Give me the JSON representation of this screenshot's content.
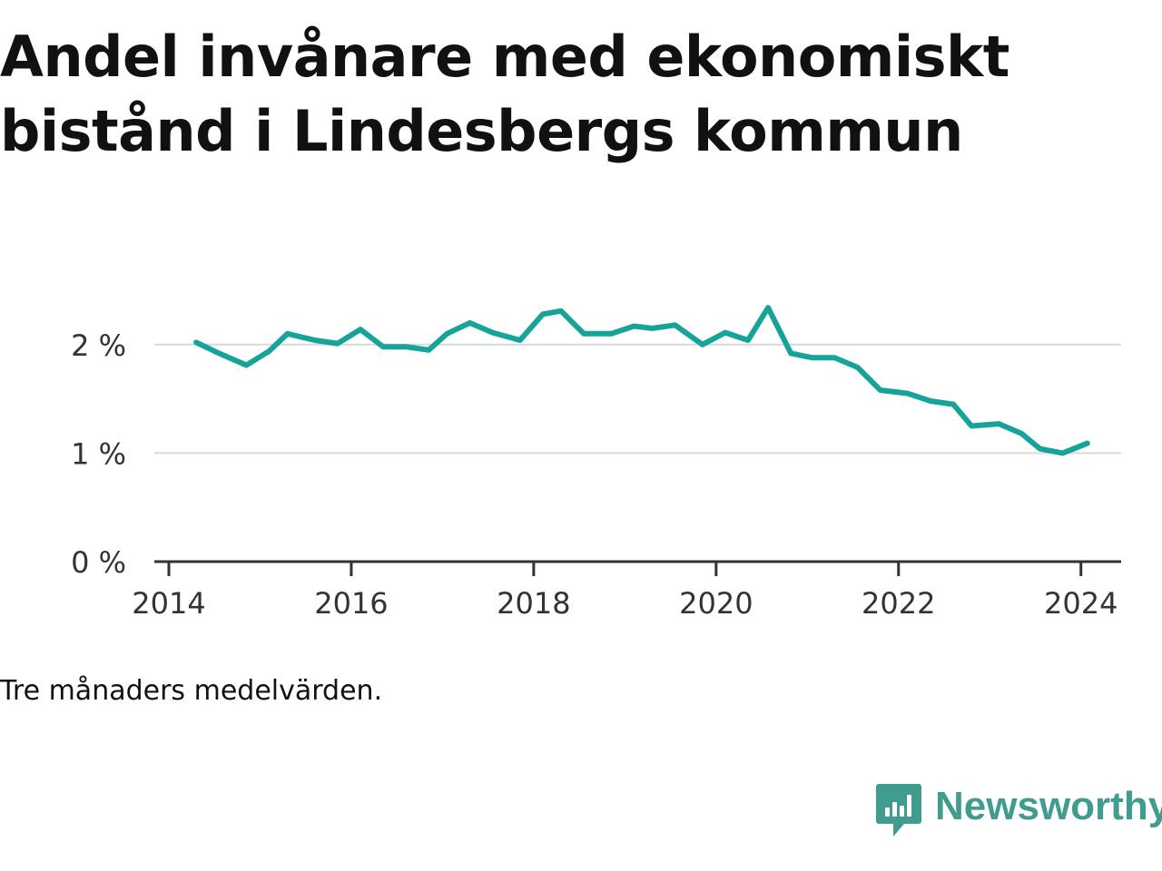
{
  "title": "Andel invånare med ekonomiskt bistånd i Lindesbergs kommun",
  "note": "Tre månaders medelvärden.",
  "brand": {
    "name": "Newsworthy",
    "icon": "newsworthy-logo-icon",
    "color": "#3f9c8f"
  },
  "chart_data": {
    "type": "line",
    "title": "Andel invånare med ekonomiskt bistånd i Lindesbergs kommun",
    "xlabel": "",
    "ylabel": "",
    "xlim": [
      2014,
      2024.6
    ],
    "ylim": [
      0,
      2.5
    ],
    "x_ticks": [
      2014,
      2016,
      2018,
      2020,
      2022,
      2024
    ],
    "x_tick_labels": [
      "2014",
      "2016",
      "2018",
      "2020",
      "2022",
      "2024"
    ],
    "y_ticks": [
      0,
      1,
      2
    ],
    "y_tick_labels": [
      "0 %",
      "1 %",
      "2 %"
    ],
    "grid": true,
    "line_color": "#16a39a",
    "series": [
      {
        "name": "",
        "x": [
          2014.3,
          2014.55,
          2014.85,
          2015.1,
          2015.3,
          2015.6,
          2015.85,
          2016.1,
          2016.35,
          2016.6,
          2016.85,
          2017.05,
          2017.3,
          2017.55,
          2017.85,
          2018.1,
          2018.3,
          2018.55,
          2018.85,
          2019.1,
          2019.3,
          2019.55,
          2019.85,
          2020.1,
          2020.35,
          2020.57,
          2020.82,
          2021.05,
          2021.3,
          2021.55,
          2021.8,
          2022.1,
          2022.35,
          2022.6,
          2022.8,
          2023.1,
          2023.35,
          2023.55,
          2023.8,
          2024.07
        ],
        "values": [
          2.02,
          1.92,
          1.81,
          1.94,
          2.1,
          2.04,
          2.01,
          2.14,
          1.98,
          1.98,
          1.95,
          2.1,
          2.2,
          2.11,
          2.04,
          2.28,
          2.31,
          2.1,
          2.1,
          2.17,
          2.15,
          2.18,
          2.0,
          2.11,
          2.04,
          2.34,
          1.92,
          1.88,
          1.88,
          1.79,
          1.58,
          1.55,
          1.48,
          1.45,
          1.25,
          1.27,
          1.18,
          1.04,
          1.0,
          1.09
        ]
      }
    ]
  }
}
